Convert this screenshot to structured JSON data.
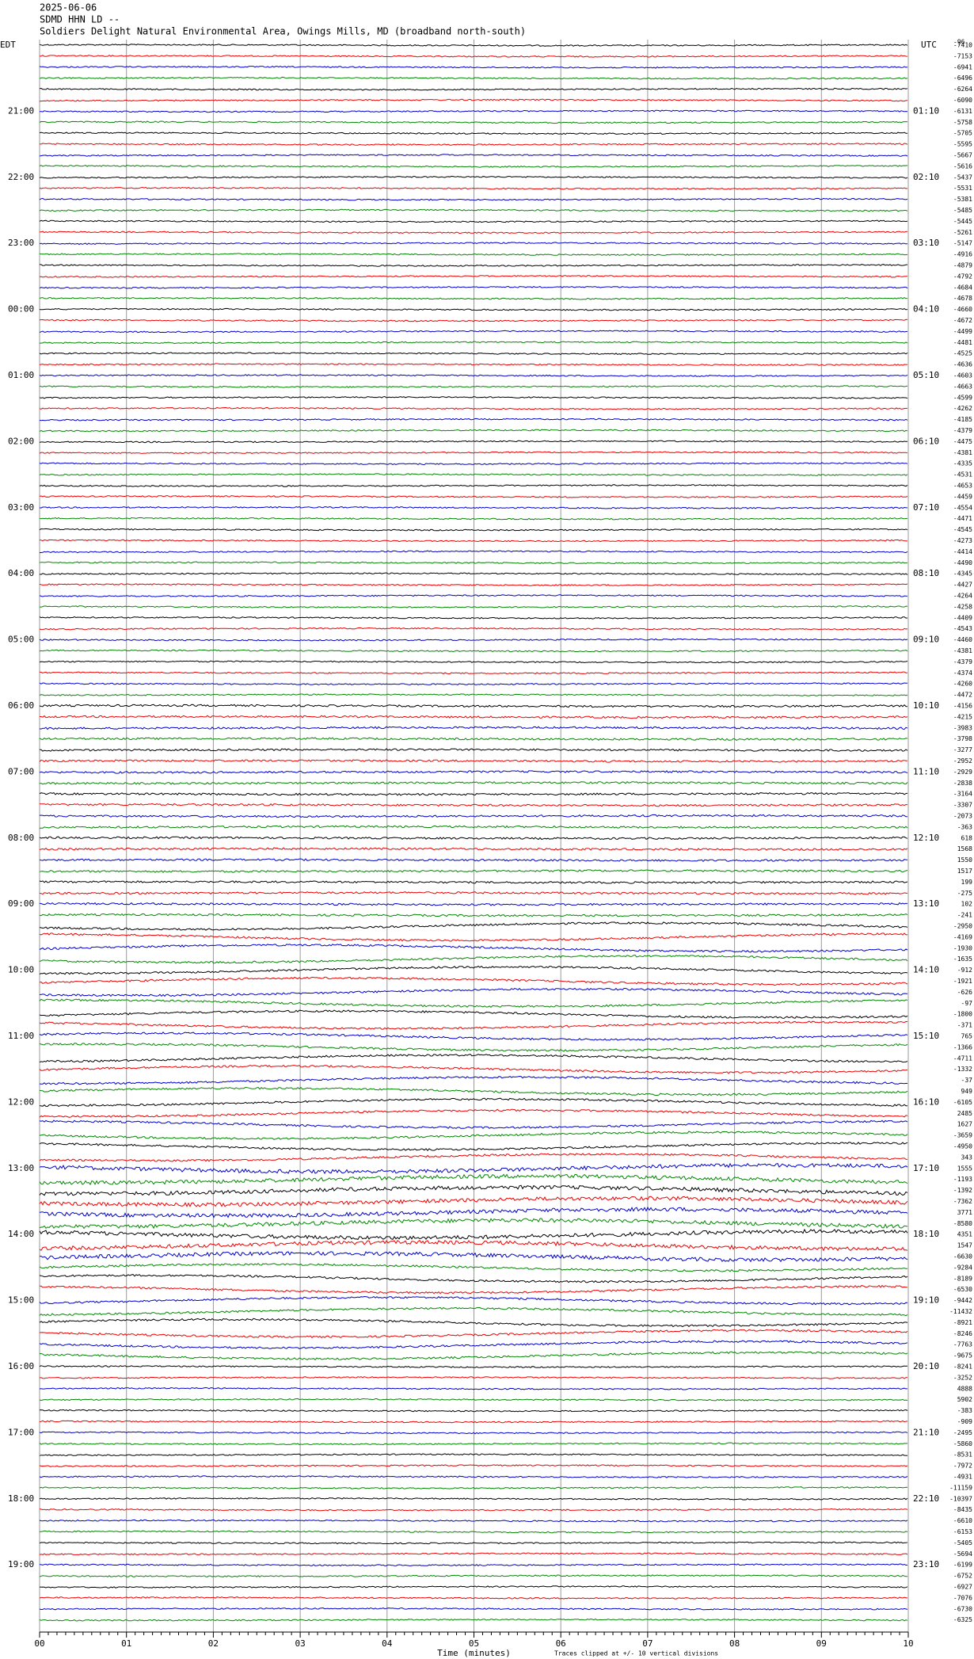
{
  "header": {
    "date": "2025-06-06",
    "station": "SDMD HHN LD --",
    "location": "Soldiers Delight Natural Environmental Area, Owings Mills, MD (broadband north-south)"
  },
  "left_zone": "EDT",
  "right_zone": "UTC",
  "corner_note": "-96",
  "edt_hours": [
    "21:00",
    "22:00",
    "23:00",
    "00:00",
    "01:00",
    "02:00",
    "03:00",
    "04:00",
    "05:00",
    "06:00",
    "07:00",
    "08:00",
    "09:00",
    "10:00",
    "11:00",
    "12:00",
    "13:00",
    "14:00",
    "15:00",
    "16:00",
    "17:00",
    "18:00",
    "19:00"
  ],
  "utc_hours": [
    "01:10",
    "02:10",
    "03:10",
    "04:10",
    "05:10",
    "06:10",
    "07:10",
    "08:10",
    "09:10",
    "10:10",
    "11:10",
    "12:10",
    "13:10",
    "14:10",
    "15:10",
    "16:10",
    "17:10",
    "18:10",
    "19:10",
    "20:10",
    "21:10",
    "22:10",
    "23:10"
  ],
  "trace_labels": [
    -7410,
    -7153,
    -6941,
    -6496,
    -6264,
    -6090,
    -6131,
    -5758,
    -5705,
    -5595,
    -5667,
    -5616,
    -5437,
    -5531,
    -5381,
    -5485,
    -5445,
    -5261,
    -5147,
    -4916,
    -4879,
    -4792,
    -4684,
    -4678,
    -4660,
    -4672,
    -4499,
    -4481,
    -4525,
    -4636,
    -4603,
    -4663,
    -4599,
    -4262,
    -4185,
    -4379,
    -4475,
    -4381,
    -4335,
    -4531,
    -4653,
    -4459,
    -4554,
    -4471,
    -4545,
    -4273,
    -4414,
    -4490,
    -4345,
    -4427,
    -4264,
    -4258,
    -4409,
    -4543,
    -4460,
    -4381,
    -4379,
    -4374,
    -4260,
    -4472,
    -4156,
    -4215,
    -3983,
    -3798,
    -3277,
    -2952,
    -2929,
    -2838,
    -3164,
    -3307,
    -2073,
    -363,
    618,
    1568,
    1550,
    1517,
    199,
    -275,
    102,
    -241,
    -2950,
    -4169,
    -1930,
    -1635,
    -912,
    -1921,
    -626,
    -97,
    -1800,
    -371,
    765,
    -1366,
    -4711,
    -1332,
    -37,
    949,
    -6105,
    2485,
    1627,
    -3659,
    -4950,
    343,
    1555,
    -1193,
    -1392,
    -7362,
    3771,
    -8580,
    4351,
    1547,
    -6630,
    -9284,
    -8189,
    -6530,
    -9442,
    -11432,
    -8921,
    -8246,
    -7763,
    -9675,
    -8241,
    -3252,
    4888,
    5902,
    -383,
    -909,
    -2495,
    -5860,
    -8531,
    -7972,
    -4931,
    -11159,
    -10397,
    -8435,
    -6610,
    -6153,
    -5405,
    -5694,
    -6199,
    -6752,
    -6927,
    -7076,
    -6730,
    -6325
  ],
  "x_axis": {
    "ticks": [
      "00",
      "01",
      "02",
      "03",
      "04",
      "05",
      "06",
      "07",
      "08",
      "09",
      "10"
    ],
    "label": "Time (minutes)",
    "note": "Traces clipped at +/- 10 vertical divisions"
  }
}
